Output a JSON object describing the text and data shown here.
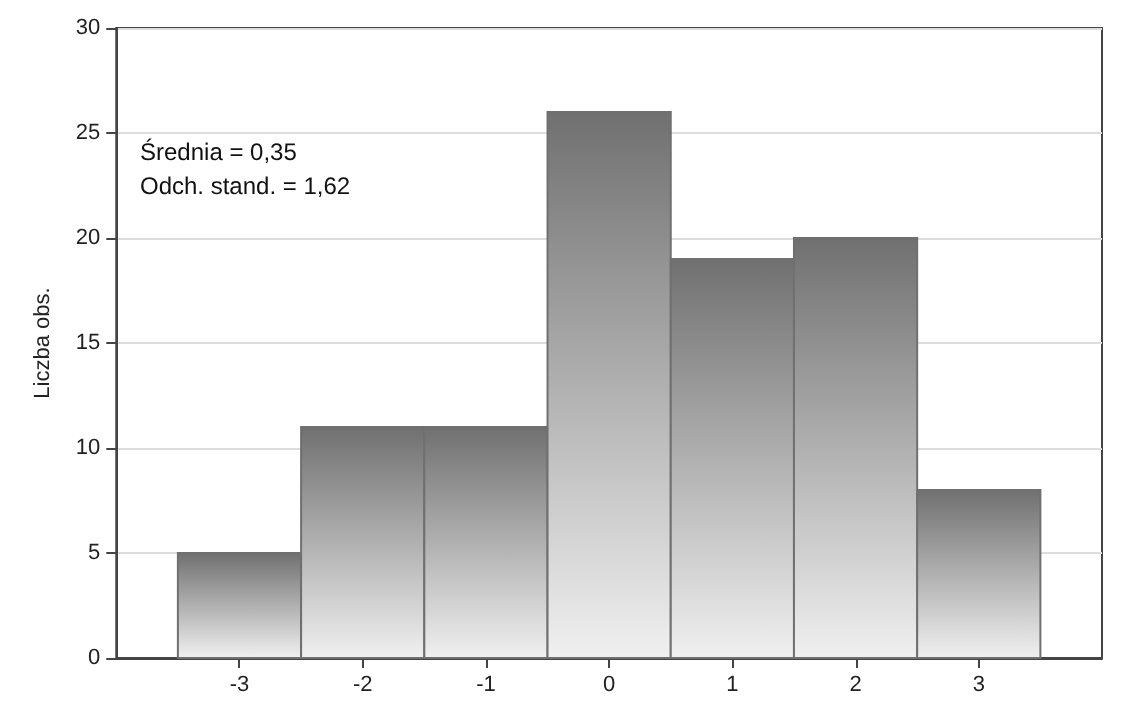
{
  "chart_data": {
    "type": "histogram",
    "ylabel": "Liczba obs.",
    "bins": [
      -3.5,
      -2.5,
      -1.5,
      -0.5,
      0.5,
      1.5,
      2.5,
      3.5
    ],
    "values": [
      5,
      11,
      11,
      26,
      19,
      20,
      8
    ],
    "color": "#707070",
    "xlim": [
      -4,
      4
    ],
    "xticks": [
      -3,
      -2,
      -1,
      0,
      1,
      2,
      3
    ],
    "ylim": [
      0,
      30
    ],
    "yticks": [
      0,
      5,
      10,
      15,
      20,
      25,
      30
    ],
    "grid": "y",
    "annotations": [
      "Średnia = 0,35",
      "Odch. stand. = 1,62"
    ]
  }
}
